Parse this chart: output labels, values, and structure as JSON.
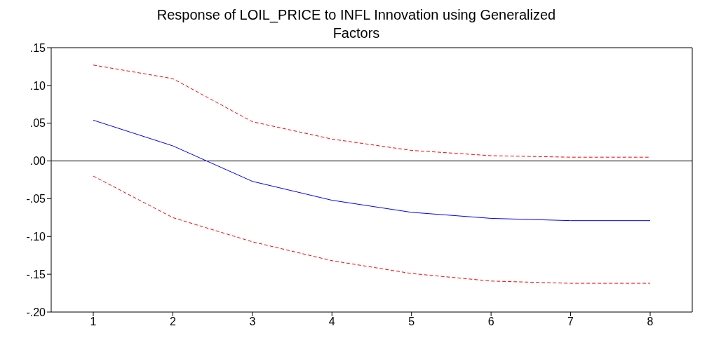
{
  "chart_data": {
    "type": "line",
    "title": "Response of LOIL_PRICE to INFL Innovation using Generalized Factors",
    "categories": [
      "1",
      "2",
      "3",
      "4",
      "5",
      "6",
      "7",
      "8"
    ],
    "series": [
      {
        "color": "#0000ff",
        "line_style": "solid",
        "values": [
          0.054,
          0.02,
          -0.027,
          -0.052,
          -0.068,
          -0.076,
          -0.079,
          -0.079
        ]
      },
      {
        "color": "#ff0000",
        "line_style": "dashed",
        "values": [
          0.127,
          0.109,
          0.052,
          0.029,
          0.014,
          0.007,
          0.005,
          0.005
        ]
      },
      {
        "color": "#ff0000",
        "line_style": "dashed",
        "values": [
          -0.02,
          -0.075,
          -0.107,
          -0.132,
          -0.149,
          -0.159,
          -0.162,
          -0.162
        ]
      }
    ],
    "ylim": [
      -0.2,
      0.15
    ],
    "yticks": [
      {
        "value": -0.2,
        "label": "-.20"
      },
      {
        "value": -0.15,
        "label": "-.15"
      },
      {
        "value": -0.1,
        "label": "-.10"
      },
      {
        "value": -0.05,
        "label": "-.05"
      },
      {
        "value": 0,
        "label": ".00"
      },
      {
        "value": 0.05,
        "label": ".05"
      },
      {
        "value": 0.1,
        "label": ".10"
      },
      {
        "value": 0.15,
        "label": ".15"
      }
    ],
    "ref_lines": [
      {
        "axis": "y",
        "value": 0,
        "color": "#000000"
      }
    ]
  }
}
